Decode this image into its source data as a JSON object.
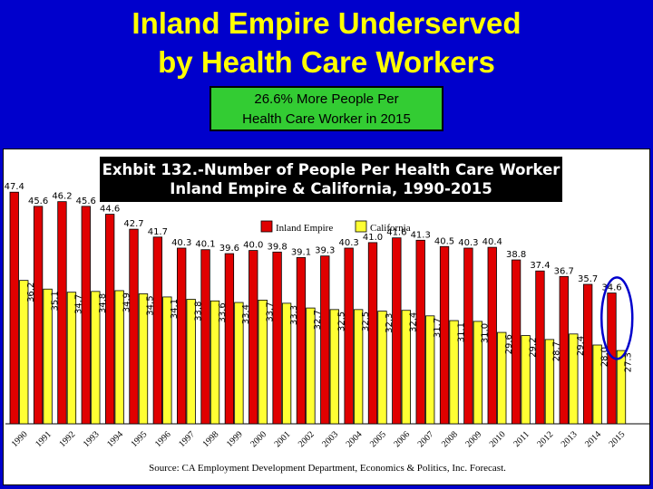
{
  "slide": {
    "title_line1": "Inland Empire Underserved",
    "title_line2": "by Health Care Workers",
    "callout_line1": "26.6% More People Per",
    "callout_line2": "Health Care Worker in 2015"
  },
  "colors": {
    "background": "#0000cc",
    "title": "#ffff00",
    "callout": "#33cc33",
    "inland_empire": "#e00000",
    "california": "#ffff33",
    "highlight_circle": "#0000cc"
  },
  "chart_data": {
    "type": "bar",
    "title_line1": "Exhbit 132.-Number of People Per Health Care Worker",
    "title_line2": "Inland Empire & California, 1990-2015",
    "categories": [
      "1990",
      "1991",
      "1992",
      "1993",
      "1994",
      "1995",
      "1996",
      "1997",
      "1998",
      "1999",
      "2000",
      "2001",
      "2002",
      "2003",
      "2004",
      "2005",
      "2006",
      "2007",
      "2008",
      "2009",
      "2010",
      "2011",
      "2012",
      "2013",
      "2014",
      "2015"
    ],
    "series": [
      {
        "name": "Inland Empire",
        "values": [
          47.4,
          45.6,
          46.2,
          45.6,
          44.6,
          42.7,
          41.7,
          40.3,
          40.1,
          39.6,
          40.0,
          39.8,
          39.1,
          39.3,
          40.3,
          41.0,
          41.6,
          41.3,
          40.5,
          40.3,
          40.4,
          38.8,
          37.4,
          36.7,
          35.7,
          34.6
        ]
      },
      {
        "name": "California",
        "values": [
          36.2,
          35.1,
          34.7,
          34.8,
          34.9,
          34.5,
          34.1,
          33.8,
          33.6,
          33.4,
          33.7,
          33.3,
          32.7,
          32.5,
          32.5,
          32.3,
          32.4,
          31.7,
          31.1,
          31.0,
          29.6,
          29.2,
          28.7,
          29.4,
          28.0,
          27.3
        ]
      }
    ],
    "legend_position": "top",
    "highlight": "2015",
    "source": "Source:  CA Employment Development Department,  Economics & Politics, Inc. Forecast."
  }
}
